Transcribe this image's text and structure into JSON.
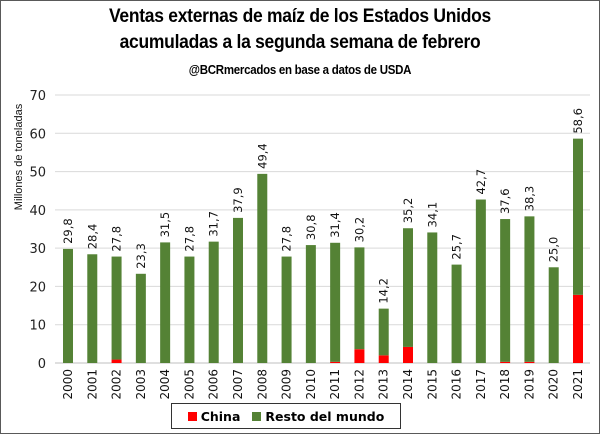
{
  "title_line1": "Ventas externas de maíz de los Estados Unidos",
  "title_line2": "acumuladas a la segunda semana de febrero",
  "subtitle": "@BCRmercados en base a datos de USDA",
  "colors": {
    "china": "#ff0000",
    "resto": "#548235",
    "grid": "#d9d9d9"
  },
  "chart_data": {
    "type": "bar",
    "stacked": true,
    "title": "Ventas externas de maíz de los Estados Unidos acumuladas a la segunda semana de febrero",
    "subtitle": "@BCRmercados en base a datos de USDA",
    "xlabel": "",
    "ylabel": "Millones de toneladas",
    "ylim": [
      0,
      70
    ],
    "yticks": [
      0,
      10,
      20,
      30,
      40,
      50,
      60,
      70
    ],
    "grid": true,
    "legend_position": "bottom",
    "categories": [
      "2000",
      "2001",
      "2002",
      "2003",
      "2004",
      "2005",
      "2006",
      "2007",
      "2008",
      "2009",
      "2010",
      "2011",
      "2012",
      "2013",
      "2014",
      "2015",
      "2016",
      "2017",
      "2018",
      "2019",
      "2020",
      "2021"
    ],
    "totals": [
      29.8,
      28.4,
      27.8,
      23.3,
      31.5,
      27.8,
      31.7,
      37.9,
      49.4,
      27.8,
      30.8,
      31.4,
      30.2,
      14.2,
      35.2,
      34.1,
      25.7,
      42.7,
      37.6,
      38.3,
      25.0,
      58.6
    ],
    "total_labels": [
      "29,8",
      "28,4",
      "27,8",
      "23,3",
      "31,5",
      "27,8",
      "31,7",
      "37,9",
      "49,4",
      "27,8",
      "30,8",
      "31,4",
      "30,2",
      "14,2",
      "35,2",
      "34,1",
      "25,7",
      "42,7",
      "37,6",
      "38,3",
      "25,0",
      "58,6"
    ],
    "series": [
      {
        "name": "China",
        "values": [
          0,
          0,
          0.9,
          0,
          0,
          0,
          0,
          0,
          0,
          0,
          0,
          0.3,
          3.6,
          2.0,
          4.2,
          0,
          0,
          0,
          0.3,
          0.3,
          0,
          17.8
        ]
      },
      {
        "name": "Resto del mundo",
        "values": [
          29.8,
          28.4,
          26.9,
          23.3,
          31.5,
          27.8,
          31.7,
          37.9,
          49.4,
          27.8,
          30.8,
          31.1,
          26.6,
          12.2,
          31.0,
          34.1,
          25.7,
          42.7,
          37.3,
          38.0,
          25.0,
          40.8
        ]
      }
    ]
  },
  "legend": {
    "china": "China",
    "resto": "Resto del mundo"
  }
}
